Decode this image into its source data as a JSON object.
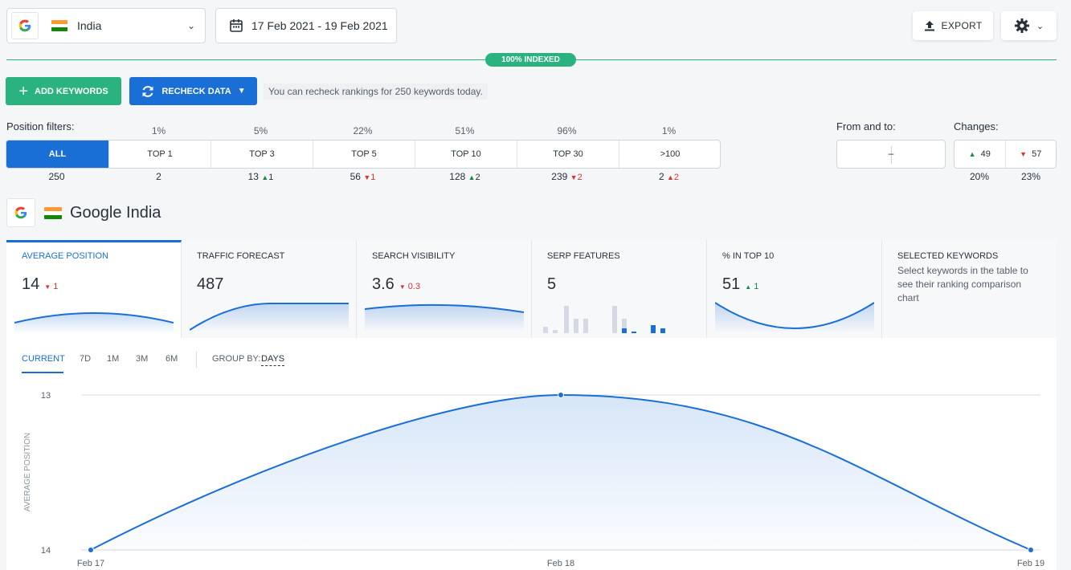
{
  "location": {
    "country": "India"
  },
  "date_range": "17 Feb 2021 - 19 Feb 2021",
  "export_label": "EXPORT",
  "indexed_badge": "100% INDEXED",
  "actions": {
    "add_keywords": "ADD KEYWORDS",
    "recheck_data": "RECHECK DATA",
    "recheck_note": "You can recheck rankings for 250 keywords today."
  },
  "position_filters": {
    "label": "Position filters:",
    "items": [
      {
        "label": "ALL",
        "pct": "",
        "count": "250",
        "delta": "",
        "dir": ""
      },
      {
        "label": "TOP 1",
        "pct": "1%",
        "count": "2",
        "delta": "",
        "dir": ""
      },
      {
        "label": "TOP 3",
        "pct": "5%",
        "count": "13",
        "delta": "1",
        "dir": "up"
      },
      {
        "label": "TOP 5",
        "pct": "22%",
        "count": "56",
        "delta": "1",
        "dir": "down"
      },
      {
        "label": "TOP 10",
        "pct": "51%",
        "count": "128",
        "delta": "2",
        "dir": "up"
      },
      {
        "label": "TOP 30",
        "pct": "96%",
        "count": "239",
        "delta": "2",
        "dir": "down"
      },
      {
        "label": ">100",
        "pct": "1%",
        "count": "2",
        "delta": "2",
        "dir": "upred"
      }
    ]
  },
  "from_and_to": {
    "label": "From and to:",
    "value": "–"
  },
  "changes": {
    "label": "Changes:",
    "up": "49",
    "down": "57",
    "up_pct": "20%",
    "down_pct": "23%"
  },
  "engine_title": "Google India",
  "metrics": [
    {
      "label": "AVERAGE POSITION",
      "value": "14",
      "change": "1",
      "dir": "down"
    },
    {
      "label": "TRAFFIC FORECAST",
      "value": "487",
      "change": "",
      "dir": ""
    },
    {
      "label": "SEARCH VISIBILITY",
      "value": "3.6",
      "change": "0.3",
      "dir": "down"
    },
    {
      "label": "SERP FEATURES",
      "value": "5",
      "change": "",
      "dir": ""
    },
    {
      "label": "% IN TOP 10",
      "value": "51",
      "change": "1",
      "dir": "up"
    },
    {
      "label": "SELECTED KEYWORDS",
      "desc": "Select keywords in the table to see their ranking comparison chart"
    }
  ],
  "chart_tabs": [
    "CURRENT",
    "7D",
    "1M",
    "3M",
    "6M"
  ],
  "group_by": {
    "label": "GROUP BY:",
    "value": "DAYS"
  },
  "colors": {
    "accent": "#1a6fd6",
    "green": "#2bb37f",
    "red": "#d8362f"
  },
  "chart_data": {
    "type": "line",
    "x": [
      "Feb 17",
      "Feb 18",
      "Feb 19"
    ],
    "series": [
      {
        "values": [
          14,
          13,
          14
        ]
      }
    ],
    "ylabel": "AVERAGE POSITION",
    "y_ticks": [
      "13",
      "14"
    ],
    "ylim": [
      13,
      14
    ],
    "y_inverted": true
  }
}
